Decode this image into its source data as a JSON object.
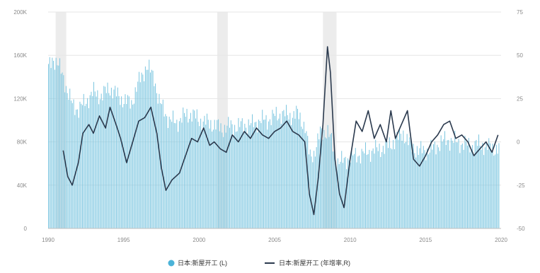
{
  "chart_data": {
    "type": "bar+line",
    "title": "",
    "xlabel": "",
    "ylabel_left": "",
    "ylabel_right": "",
    "x_range": [
      1990,
      2020
    ],
    "ylim_left": [
      0,
      200
    ],
    "ylim_right": [
      -50,
      75
    ],
    "left_ticks": [
      "0",
      "40K",
      "80K",
      "120K",
      "160K",
      "200K"
    ],
    "right_ticks": [
      "-50",
      "-25",
      "0",
      "25",
      "50",
      "75"
    ],
    "x_ticks": [
      "1990",
      "1995",
      "2000",
      "2005",
      "2010",
      "2015",
      "2020"
    ],
    "shaded_periods": [
      [
        1990.5,
        1991.2
      ],
      [
        2001.2,
        2001.9
      ],
      [
        2008.2,
        2009.1
      ]
    ],
    "grid": true,
    "legend_position": "bottom",
    "series": [
      {
        "name": "日本:新屋开工 (L)",
        "kind": "bar",
        "color": "#7cc6e0",
        "points": [
          [
            1990.0,
            148
          ],
          [
            1990.3,
            158
          ],
          [
            1990.6,
            152
          ],
          [
            1991.0,
            140
          ],
          [
            1991.3,
            124
          ],
          [
            1991.6,
            114
          ],
          [
            1992.0,
            110
          ],
          [
            1992.5,
            118
          ],
          [
            1993.0,
            126
          ],
          [
            1993.5,
            122
          ],
          [
            1994.0,
            130
          ],
          [
            1994.5,
            124
          ],
          [
            1995.0,
            118
          ],
          [
            1995.5,
            116
          ],
          [
            1996.0,
            136
          ],
          [
            1996.5,
            150
          ],
          [
            1997.0,
            140
          ],
          [
            1997.3,
            118
          ],
          [
            1997.7,
            108
          ],
          [
            1998.0,
            100
          ],
          [
            1998.5,
            98
          ],
          [
            1999.0,
            104
          ],
          [
            1999.5,
            106
          ],
          [
            2000.0,
            100
          ],
          [
            2000.5,
            98
          ],
          [
            2001.0,
            96
          ],
          [
            2001.5,
            92
          ],
          [
            2002.0,
            95
          ],
          [
            2002.5,
            94
          ],
          [
            2003.0,
            96
          ],
          [
            2003.5,
            96
          ],
          [
            2004.0,
            100
          ],
          [
            2004.5,
            100
          ],
          [
            2005.0,
            104
          ],
          [
            2005.5,
            106
          ],
          [
            2006.0,
            104
          ],
          [
            2006.5,
            106
          ],
          [
            2007.0,
            94
          ],
          [
            2007.3,
            66
          ],
          [
            2007.6,
            70
          ],
          [
            2008.0,
            88
          ],
          [
            2008.5,
            90
          ],
          [
            2008.8,
            78
          ],
          [
            2009.0,
            62
          ],
          [
            2009.5,
            62
          ],
          [
            2010.0,
            66
          ],
          [
            2010.5,
            68
          ],
          [
            2011.0,
            70
          ],
          [
            2011.5,
            72
          ],
          [
            2012.0,
            74
          ],
          [
            2012.5,
            76
          ],
          [
            2013.0,
            82
          ],
          [
            2013.5,
            88
          ],
          [
            2014.0,
            76
          ],
          [
            2014.5,
            72
          ],
          [
            2015.0,
            72
          ],
          [
            2015.5,
            74
          ],
          [
            2016.0,
            80
          ],
          [
            2016.5,
            82
          ],
          [
            2017.0,
            80
          ],
          [
            2017.5,
            78
          ],
          [
            2018.0,
            76
          ],
          [
            2018.5,
            78
          ],
          [
            2019.0,
            76
          ],
          [
            2019.5,
            74
          ]
        ]
      },
      {
        "name": "日本:新屋开工 (年增率,R)",
        "kind": "line",
        "color": "#2b3a4e",
        "points": [
          [
            1991.0,
            -5
          ],
          [
            1991.3,
            -20
          ],
          [
            1991.6,
            -25
          ],
          [
            1992.0,
            -12
          ],
          [
            1992.3,
            5
          ],
          [
            1992.7,
            10
          ],
          [
            1993.0,
            5
          ],
          [
            1993.4,
            15
          ],
          [
            1993.8,
            8
          ],
          [
            1994.1,
            20
          ],
          [
            1994.5,
            10
          ],
          [
            1994.8,
            2
          ],
          [
            1995.2,
            -12
          ],
          [
            1995.6,
            0
          ],
          [
            1996.0,
            12
          ],
          [
            1996.4,
            14
          ],
          [
            1996.8,
            20
          ],
          [
            1997.2,
            5
          ],
          [
            1997.5,
            -15
          ],
          [
            1997.8,
            -28
          ],
          [
            1998.2,
            -22
          ],
          [
            1998.7,
            -18
          ],
          [
            1999.1,
            -8
          ],
          [
            1999.5,
            2
          ],
          [
            1999.9,
            0
          ],
          [
            2000.3,
            8
          ],
          [
            2000.7,
            -2
          ],
          [
            2001.0,
            0
          ],
          [
            2001.4,
            -4
          ],
          [
            2001.8,
            -6
          ],
          [
            2002.2,
            4
          ],
          [
            2002.6,
            0
          ],
          [
            2003.0,
            6
          ],
          [
            2003.4,
            2
          ],
          [
            2003.8,
            8
          ],
          [
            2004.2,
            4
          ],
          [
            2004.6,
            2
          ],
          [
            2005.0,
            6
          ],
          [
            2005.4,
            8
          ],
          [
            2005.8,
            12
          ],
          [
            2006.2,
            6
          ],
          [
            2006.6,
            4
          ],
          [
            2007.0,
            0
          ],
          [
            2007.3,
            -30
          ],
          [
            2007.6,
            -42
          ],
          [
            2007.9,
            -20
          ],
          [
            2008.2,
            10
          ],
          [
            2008.5,
            55
          ],
          [
            2008.7,
            40
          ],
          [
            2009.0,
            -10
          ],
          [
            2009.3,
            -30
          ],
          [
            2009.6,
            -38
          ],
          [
            2010.0,
            -10
          ],
          [
            2010.4,
            12
          ],
          [
            2010.8,
            6
          ],
          [
            2011.2,
            18
          ],
          [
            2011.6,
            2
          ],
          [
            2012.0,
            10
          ],
          [
            2012.4,
            0
          ],
          [
            2012.7,
            18
          ],
          [
            2013.0,
            2
          ],
          [
            2013.4,
            10
          ],
          [
            2013.8,
            18
          ],
          [
            2014.2,
            -10
          ],
          [
            2014.6,
            -14
          ],
          [
            2015.0,
            -8
          ],
          [
            2015.4,
            0
          ],
          [
            2015.8,
            4
          ],
          [
            2016.2,
            10
          ],
          [
            2016.6,
            12
          ],
          [
            2017.0,
            2
          ],
          [
            2017.4,
            4
          ],
          [
            2017.8,
            0
          ],
          [
            2018.2,
            -8
          ],
          [
            2018.6,
            -4
          ],
          [
            2019.0,
            0
          ],
          [
            2019.4,
            -6
          ],
          [
            2019.8,
            4
          ]
        ]
      }
    ]
  },
  "legend": {
    "items": [
      {
        "label": "日本:新屋开工 (L)",
        "marker": "dot"
      },
      {
        "label": "日本:新屋开工 (年增率,R)",
        "marker": "line"
      }
    ]
  }
}
